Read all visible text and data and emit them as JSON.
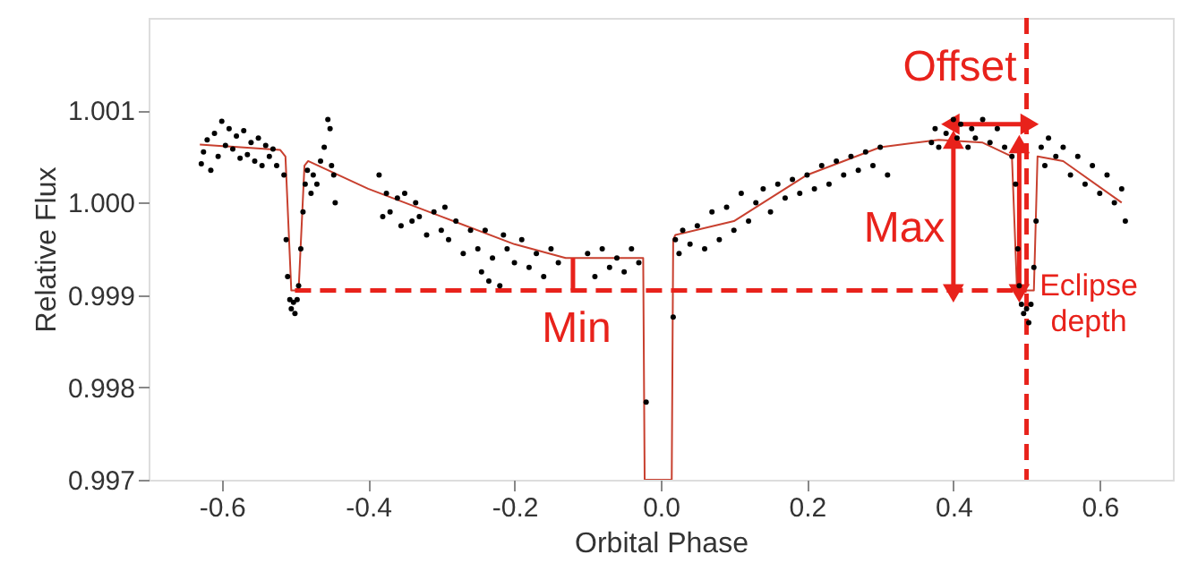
{
  "chart_data": {
    "type": "scatter",
    "xlabel": "Orbital Phase",
    "ylabel": "Relative Flux",
    "xlim": [
      -0.7,
      0.7
    ],
    "ylim": [
      0.997,
      1.002
    ],
    "xticks": [
      -0.6,
      -0.4,
      -0.2,
      {
        "value": 0,
        "label": "0.0"
      },
      0.2,
      0.4,
      0.6
    ],
    "yticks": [
      0.997,
      0.998,
      0.999,
      {
        "value": 1.0,
        "label": "1.000"
      },
      1.001
    ],
    "grid": false,
    "series": [
      {
        "color": "#000000",
        "marker": "circle",
        "x": [
          -0.628,
          -0.625,
          -0.62,
          -0.615,
          -0.61,
          -0.605,
          -0.6,
          -0.595,
          -0.59,
          -0.585,
          -0.58,
          -0.575,
          -0.57,
          -0.565,
          -0.56,
          -0.555,
          -0.55,
          -0.545,
          -0.54,
          -0.535,
          -0.53,
          -0.525,
          -0.515,
          -0.512,
          -0.51,
          -0.507,
          -0.505,
          -0.502,
          -0.5,
          -0.497,
          -0.495,
          -0.492,
          -0.489,
          -0.486,
          -0.483,
          -0.478,
          -0.475,
          -0.47,
          -0.465,
          -0.46,
          -0.455,
          -0.452,
          -0.45,
          -0.447,
          -0.445,
          -0.385,
          -0.38,
          -0.375,
          -0.37,
          -0.36,
          -0.355,
          -0.35,
          -0.34,
          -0.335,
          -0.33,
          -0.32,
          -0.31,
          -0.3,
          -0.295,
          -0.29,
          -0.28,
          -0.27,
          -0.26,
          -0.25,
          -0.245,
          -0.24,
          -0.235,
          -0.23,
          -0.22,
          -0.215,
          -0.21,
          -0.2,
          -0.19,
          -0.18,
          -0.17,
          -0.16,
          -0.15,
          -0.14,
          -0.1,
          -0.09,
          -0.08,
          -0.07,
          -0.06,
          -0.05,
          -0.04,
          -0.03,
          -0.02,
          0.017,
          0.02,
          0.025,
          0.03,
          0.04,
          0.05,
          0.06,
          0.07,
          0.08,
          0.09,
          0.1,
          0.11,
          0.12,
          0.13,
          0.14,
          0.15,
          0.16,
          0.17,
          0.18,
          0.19,
          0.2,
          0.21,
          0.22,
          0.23,
          0.24,
          0.25,
          0.26,
          0.27,
          0.28,
          0.29,
          0.3,
          0.31,
          0.37,
          0.375,
          0.38,
          0.39,
          0.4,
          0.405,
          0.41,
          0.42,
          0.425,
          0.43,
          0.44,
          0.45,
          0.46,
          0.47,
          0.48,
          0.485,
          0.488,
          0.49,
          0.493,
          0.496,
          0.5,
          0.503,
          0.506,
          0.51,
          0.513,
          0.52,
          0.525,
          0.53,
          0.54,
          0.55,
          0.56,
          0.57,
          0.58,
          0.59,
          0.6,
          0.61,
          0.62,
          0.63,
          0.635
        ],
        "values": [
          1.00042,
          1.00055,
          1.00068,
          1.00035,
          1.00075,
          1.0005,
          1.00088,
          1.00062,
          1.0008,
          1.00058,
          1.00072,
          1.00048,
          1.00078,
          1.00052,
          1.00065,
          1.00045,
          1.0007,
          1.0004,
          1.00062,
          1.0005,
          1.00058,
          1.0004,
          1.0003,
          0.9996,
          0.9992,
          0.99895,
          0.99885,
          0.99892,
          0.9988,
          0.99895,
          0.9991,
          0.9995,
          0.9999,
          1.0002,
          1.00035,
          1.0001,
          1.0003,
          1.0002,
          1.00045,
          1.0006,
          1.0009,
          1.0008,
          1.0004,
          1.0003,
          1.0,
          1.0003,
          0.99985,
          1.0001,
          0.9999,
          1.00005,
          0.99975,
          1.0001,
          0.9998,
          1.0,
          0.99985,
          0.99965,
          0.9999,
          0.9997,
          0.99995,
          0.9996,
          0.9998,
          0.99945,
          0.9997,
          0.9995,
          0.99925,
          0.9997,
          0.99915,
          0.9994,
          0.9991,
          0.99965,
          0.9995,
          0.99935,
          0.9996,
          0.9993,
          0.99945,
          0.9992,
          0.9995,
          0.99935,
          0.99945,
          0.9992,
          0.9995,
          0.9993,
          0.9994,
          0.99925,
          0.9995,
          0.99935,
          0.99784,
          0.99876,
          0.9996,
          0.99945,
          0.9997,
          0.99955,
          0.99975,
          0.9995,
          0.9999,
          0.9996,
          0.99995,
          0.9997,
          1.0001,
          0.9998,
          1.0,
          1.00015,
          0.9999,
          1.0002,
          1.00005,
          1.00025,
          1.0001,
          1.0003,
          1.00015,
          1.0004,
          1.0002,
          1.00045,
          1.0003,
          1.0005,
          1.00035,
          1.00055,
          1.0004,
          1.0006,
          1.0003,
          1.00065,
          1.0008,
          1.0006,
          1.00075,
          1.0009,
          1.0007,
          1.00085,
          1.0006,
          1.0008,
          1.0007,
          1.0009,
          1.00065,
          1.0008,
          1.0006,
          1.0005,
          1.0002,
          0.9995,
          0.9991,
          0.9989,
          0.9988,
          0.99885,
          0.9987,
          0.9989,
          0.9993,
          0.9998,
          1.0006,
          1.0004,
          1.0007,
          1.0005,
          1.0006,
          1.0003,
          1.0005,
          1.0002,
          1.0004,
          1.0001,
          1.0003,
          1.0,
          1.00015,
          0.9998
        ]
      },
      {
        "type": "line",
        "color": "#c8402f",
        "line_style": "solid",
        "x": [
          -0.63,
          -0.52,
          -0.513,
          -0.505,
          -0.495,
          -0.487,
          -0.482,
          -0.4,
          -0.3,
          -0.2,
          -0.13,
          -0.03,
          -0.024,
          -0.022,
          0.015,
          0.017,
          0.02,
          0.1,
          0.2,
          0.3,
          0.38,
          0.44,
          0.48,
          0.487,
          0.51,
          0.515,
          0.55,
          0.63
        ],
        "values": [
          1.00063,
          1.00057,
          1.0005,
          0.99905,
          0.99905,
          1.0004,
          1.00045,
          1.00015,
          0.99985,
          0.99955,
          0.9994,
          0.9994,
          0.9994,
          0.997,
          0.997,
          0.9996,
          0.99965,
          0.9998,
          1.0003,
          1.0006,
          1.00068,
          1.00065,
          1.0005,
          0.99905,
          0.99905,
          1.0005,
          1.00045,
          1.0
        ]
      },
      {
        "type": "line",
        "color": "#e8221b",
        "line_style": "dashed",
        "x": [
          -0.5,
          0.5
        ],
        "values": [
          0.99905,
          0.99905
        ]
      },
      {
        "type": "line",
        "color": "#e8221b",
        "line_style": "solid",
        "x": [
          -0.12,
          -0.12
        ],
        "values": [
          0.99905,
          0.9994
        ]
      },
      {
        "type": "line",
        "color": "#e8221b",
        "line_style": "solid",
        "marker": "triangle",
        "x": [
          0.4,
          0.4
        ],
        "values": [
          0.99905,
          1.00065
        ]
      },
      {
        "type": "line",
        "color": "#e8221b",
        "line_style": "solid",
        "marker": "triangle",
        "x": [
          0.49,
          0.49
        ],
        "values": [
          0.99905,
          1.0006
        ]
      },
      {
        "type": "line",
        "color": "#e8221b",
        "line_style": "solid",
        "marker": "triangle",
        "x": [
          0.4,
          0.5
        ],
        "values": [
          1.00085,
          1.00085
        ]
      }
    ],
    "ref_lines": [
      {
        "axis": "x",
        "value": 0.5,
        "color": "#e8221b",
        "line_style": "dashed"
      }
    ],
    "annotations": [
      "Offset",
      "Min",
      "Max",
      "Eclipse\ndepth"
    ]
  }
}
